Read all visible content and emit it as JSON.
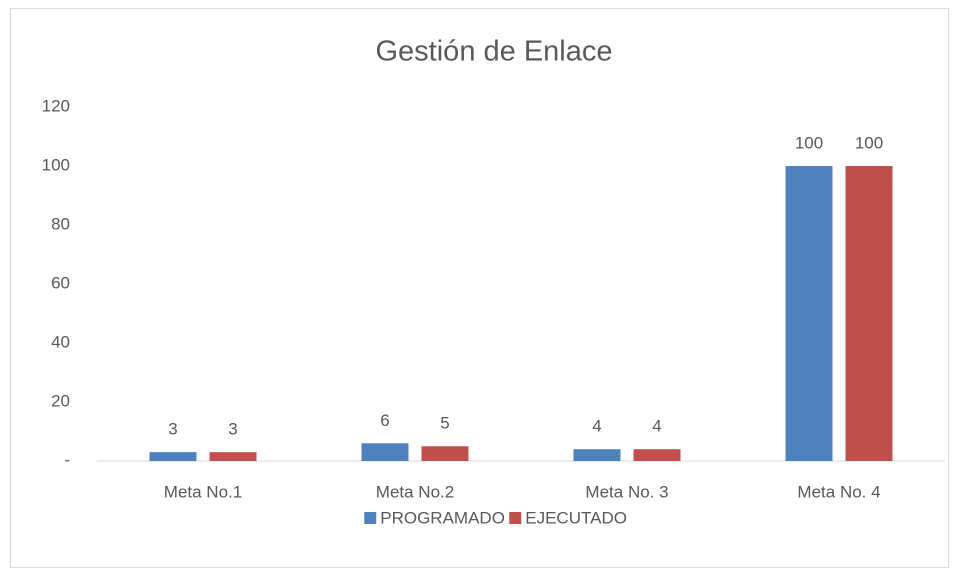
{
  "chart_data": {
    "type": "bar",
    "title": "Gestión de Enlace",
    "categories": [
      "Meta No.1",
      "Meta No.2",
      "Meta No. 3",
      "Meta No. 4"
    ],
    "series": [
      {
        "name": "PROGRAMADO",
        "color": "#4f81bd",
        "values": [
          3,
          6,
          4,
          100
        ]
      },
      {
        "name": "EJECUTADO",
        "color": "#c0504d",
        "values": [
          3,
          5,
          4,
          100
        ]
      }
    ],
    "ylim": [
      0,
      120
    ],
    "yticks": [
      {
        "value": 0,
        "label": "-"
      },
      20,
      40,
      60,
      80,
      100,
      120
    ],
    "grid": false,
    "legend": "bottom"
  }
}
